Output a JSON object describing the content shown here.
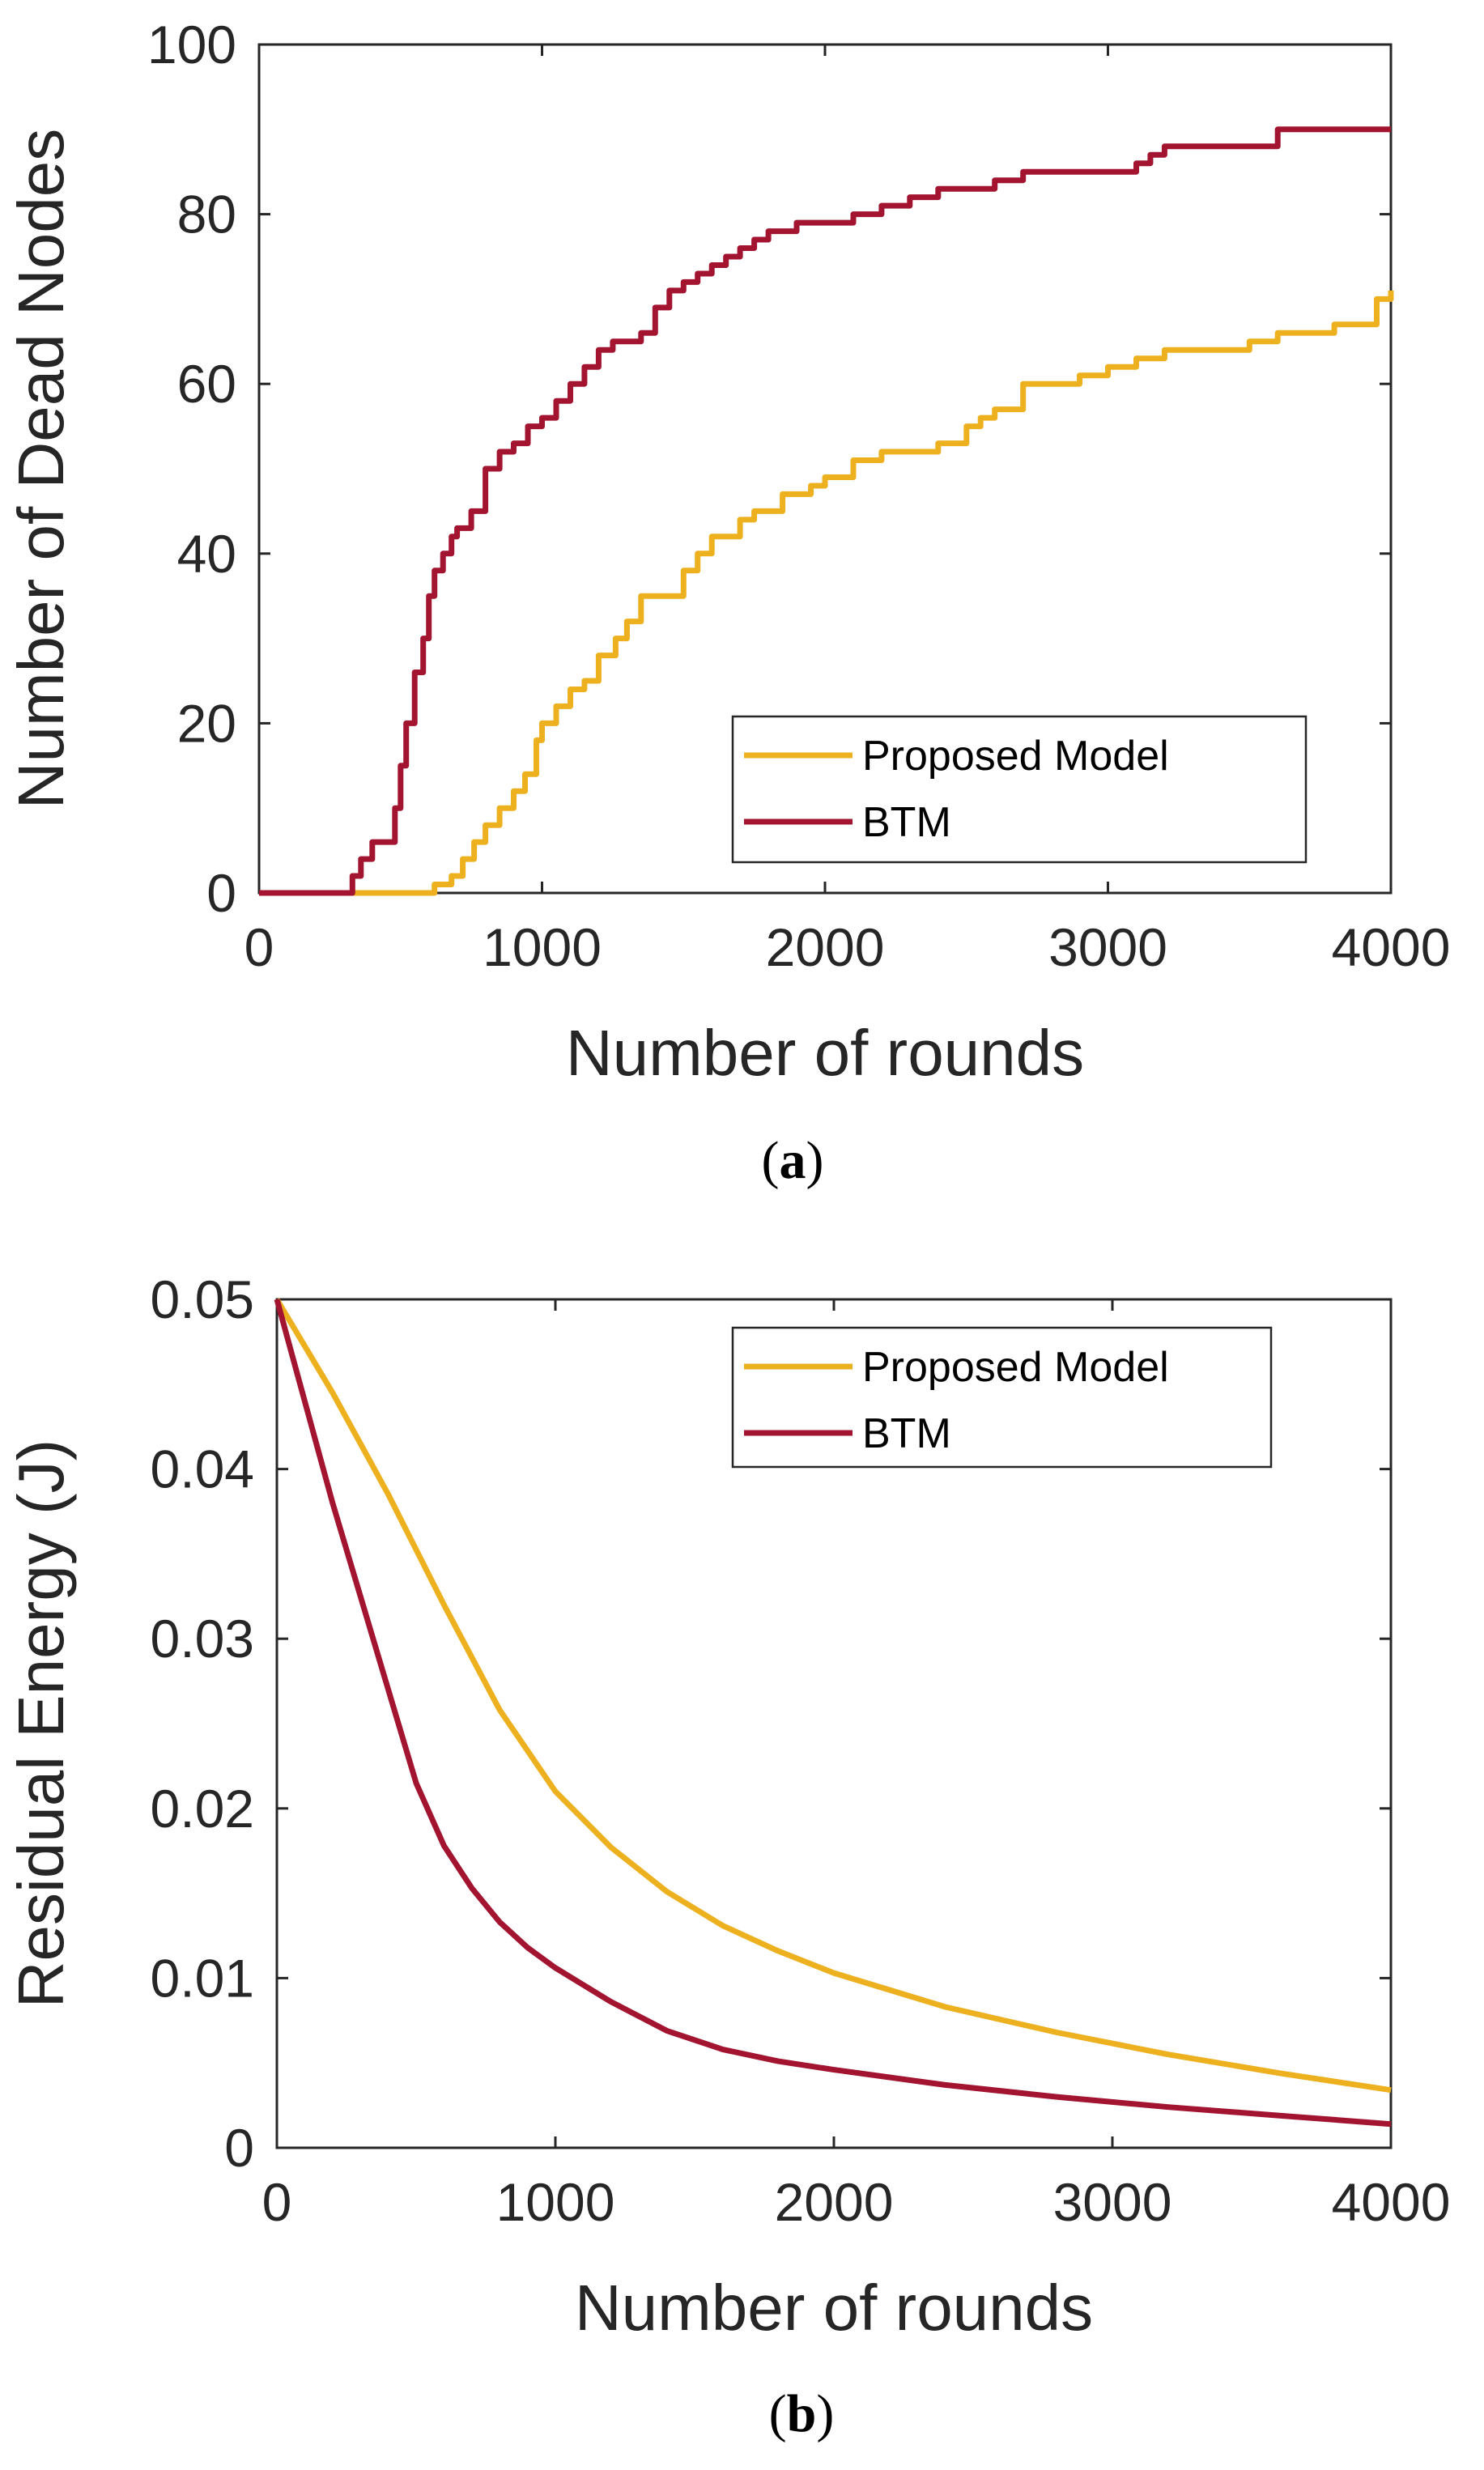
{
  "colors": {
    "proposed": "#EDB120",
    "btm": "#A2142F"
  },
  "chart_data": [
    {
      "type": "line",
      "panel_label": "a",
      "xlabel": "Number of rounds",
      "ylabel": "Number of Dead Nodes",
      "xlim": [
        0,
        4000
      ],
      "ylim": [
        0,
        100
      ],
      "xticks": [
        0,
        1000,
        2000,
        3000,
        4000
      ],
      "yticks": [
        0,
        20,
        40,
        60,
        80,
        100
      ],
      "xtick_labels": [
        "0",
        "1000",
        "2000",
        "3000",
        "4000"
      ],
      "ytick_labels": [
        "0",
        "20",
        "40",
        "60",
        "80",
        "100"
      ],
      "legend_position": "bottom-right",
      "step": true,
      "series": [
        {
          "name": "Proposed Model",
          "color_key": "proposed",
          "x": [
            0,
            300,
            580,
            620,
            680,
            720,
            760,
            800,
            850,
            900,
            940,
            980,
            1000,
            1050,
            1100,
            1150,
            1200,
            1260,
            1300,
            1350,
            1400,
            1500,
            1550,
            1600,
            1700,
            1750,
            1850,
            1950,
            2000,
            2100,
            2200,
            2300,
            2400,
            2500,
            2550,
            2600,
            2700,
            2800,
            2900,
            3000,
            3100,
            3200,
            3300,
            3500,
            3600,
            3700,
            3800,
            3950,
            4000
          ],
          "y": [
            0,
            0,
            0,
            1,
            2,
            4,
            6,
            8,
            10,
            12,
            14,
            18,
            20,
            22,
            24,
            25,
            28,
            30,
            32,
            35,
            35,
            38,
            40,
            42,
            44,
            45,
            47,
            48,
            49,
            51,
            52,
            52,
            53,
            55,
            56,
            57,
            60,
            60,
            61,
            62,
            63,
            64,
            64,
            65,
            66,
            66,
            67,
            70,
            71
          ]
        },
        {
          "name": "BTM",
          "color_key": "btm",
          "x": [
            0,
            300,
            330,
            360,
            400,
            450,
            480,
            500,
            520,
            550,
            580,
            600,
            620,
            650,
            680,
            700,
            750,
            800,
            850,
            900,
            950,
            1000,
            1050,
            1100,
            1150,
            1200,
            1250,
            1300,
            1350,
            1400,
            1450,
            1500,
            1550,
            1600,
            1650,
            1700,
            1750,
            1800,
            1900,
            2000,
            2100,
            2200,
            2300,
            2400,
            2500,
            2600,
            2700,
            2800,
            2900,
            3000,
            3100,
            3150,
            3200,
            3400,
            3550,
            3600,
            3700,
            4000
          ],
          "y": [
            0,
            0,
            2,
            4,
            6,
            6,
            10,
            15,
            20,
            26,
            30,
            35,
            38,
            40,
            42,
            43,
            45,
            50,
            52,
            53,
            55,
            56,
            58,
            60,
            62,
            64,
            65,
            65,
            66,
            69,
            71,
            72,
            73,
            74,
            75,
            76,
            77,
            78,
            79,
            79,
            80,
            81,
            82,
            83,
            83,
            84,
            85,
            85,
            85,
            85,
            86,
            87,
            88,
            88,
            88,
            90,
            90,
            90
          ]
        }
      ]
    },
    {
      "type": "line",
      "panel_label": "b",
      "xlabel": "Number of rounds",
      "ylabel": "Residual Energy (J)",
      "xlim": [
        0,
        4000
      ],
      "ylim": [
        0,
        0.05
      ],
      "xticks": [
        0,
        1000,
        2000,
        3000,
        4000
      ],
      "yticks": [
        0,
        0.01,
        0.02,
        0.03,
        0.04,
        0.05
      ],
      "xtick_labels": [
        "0",
        "1000",
        "2000",
        "3000",
        "4000"
      ],
      "ytick_labels": [
        "0",
        "0.01",
        "0.02",
        "0.03",
        "0.04",
        "0.05"
      ],
      "legend_position": "top-right",
      "step": false,
      "series": [
        {
          "name": "Proposed Model",
          "color_key": "proposed",
          "x": [
            0,
            200,
            400,
            600,
            800,
            1000,
            1200,
            1400,
            1600,
            1800,
            2000,
            2400,
            2800,
            3200,
            3600,
            4000
          ],
          "y": [
            0.05,
            0.0445,
            0.0385,
            0.032,
            0.0258,
            0.021,
            0.0177,
            0.0151,
            0.0131,
            0.0116,
            0.0103,
            0.0083,
            0.0068,
            0.0055,
            0.0044,
            0.0034
          ]
        },
        {
          "name": "BTM",
          "color_key": "btm",
          "x": [
            0,
            100,
            200,
            300,
            400,
            500,
            600,
            700,
            800,
            900,
            1000,
            1200,
            1400,
            1600,
            1800,
            2000,
            2400,
            2800,
            3200,
            3600,
            4000
          ],
          "y": [
            0.05,
            0.044,
            0.038,
            0.0325,
            0.027,
            0.0215,
            0.0178,
            0.0153,
            0.0133,
            0.0118,
            0.0106,
            0.0086,
            0.0069,
            0.0058,
            0.0051,
            0.0046,
            0.0037,
            0.003,
            0.0024,
            0.0019,
            0.0014
          ]
        }
      ]
    }
  ]
}
